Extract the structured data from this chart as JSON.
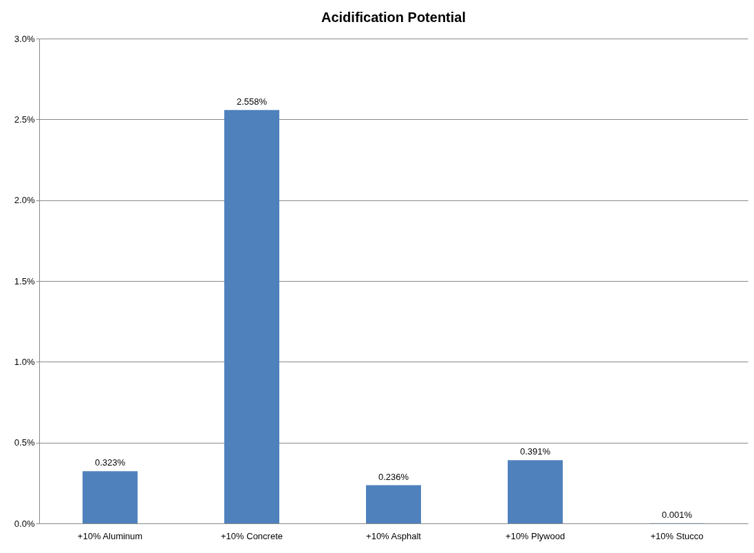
{
  "chart_data": {
    "type": "bar",
    "title": "Acidification Potential",
    "categories": [
      "+10% Aluminum",
      "+10% Concrete",
      "+10% Asphalt",
      "+10% Plywood",
      "+10% Stucco"
    ],
    "values": [
      0.323,
      2.558,
      0.236,
      0.391,
      0.001
    ],
    "value_labels": [
      "0.323%",
      "2.558%",
      "0.236%",
      "0.391%",
      "0.001%"
    ],
    "color": "#4f81bd",
    "ylim": [
      0,
      3.0
    ],
    "yticks": [
      {
        "value": 0,
        "label": "0.0%"
      },
      {
        "value": 0.5,
        "label": "0.5%"
      },
      {
        "value": 1.0,
        "label": "1.0%"
      },
      {
        "value": 1.5,
        "label": "1.5%"
      },
      {
        "value": 2.0,
        "label": "2.0%"
      },
      {
        "value": 2.5,
        "label": "2.5%"
      },
      {
        "value": 3.0,
        "label": "3.0%"
      }
    ],
    "grid": "y"
  }
}
